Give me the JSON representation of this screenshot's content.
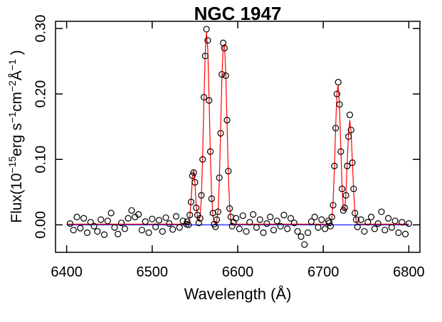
{
  "chart_data": {
    "type": "scatter",
    "title": "NGC 1947",
    "xlabel": "Wavelength (Å)",
    "ylabel": [
      "Flux(10",
      "−15",
      "erg s",
      "−1",
      "cm",
      "−2",
      "Å",
      "−1",
      " )"
    ],
    "xlim": [
      6387,
      6813
    ],
    "ylim": [
      -0.042,
      0.311
    ],
    "xticks": [
      6400,
      6500,
      6600,
      6700,
      6800
    ],
    "yticks": [
      {
        "value": 0,
        "label": "0.00"
      },
      {
        "value": 0.1,
        "label": "0.10"
      },
      {
        "value": 0.2,
        "label": "0.20"
      },
      {
        "value": 0.3,
        "label": "0.30"
      }
    ],
    "points": {
      "color": "#000000",
      "x": [
        6404,
        6408,
        6412,
        6416,
        6420,
        6424,
        6428,
        6432,
        6436,
        6440,
        6444,
        6448,
        6452,
        6456,
        6460,
        6464,
        6468,
        6472,
        6476,
        6480,
        6484,
        6488,
        6492,
        6496,
        6500,
        6504,
        6508,
        6512,
        6516,
        6520,
        6524,
        6528,
        6532,
        6536,
        6540,
        6541,
        6542.5,
        6544,
        6545.5,
        6547,
        6548.5,
        6550,
        6551.5,
        6553,
        6554.5,
        6556,
        6557.5,
        6559,
        6560.5,
        6562,
        6563.5,
        6565,
        6566.5,
        6568,
        6569.5,
        6571,
        6572.5,
        6574,
        6575.5,
        6577,
        6578.5,
        6580,
        6581.5,
        6583,
        6584.5,
        6586,
        6587.5,
        6589,
        6590.5,
        6592,
        6593.5,
        6595,
        6598,
        6602,
        6606,
        6610,
        6614,
        6618,
        6622,
        6626,
        6630,
        6634,
        6638,
        6642,
        6646,
        6650,
        6654,
        6658,
        6662,
        6666,
        6670,
        6674,
        6678,
        6682,
        6686,
        6690,
        6694,
        6698,
        6702,
        6706,
        6707,
        6708.5,
        6710,
        6711.5,
        6713,
        6714.5,
        6716,
        6717.5,
        6719,
        6720.5,
        6722,
        6723.5,
        6725,
        6726.5,
        6728,
        6729.5,
        6731,
        6732.5,
        6734,
        6735.5,
        6737,
        6738.5,
        6740,
        6744,
        6748,
        6752,
        6756,
        6760,
        6764,
        6768,
        6772,
        6776,
        6780,
        6784,
        6788,
        6792,
        6796,
        6800
      ],
      "values": [
        0.002,
        -0.008,
        0.012,
        -0.005,
        0.01,
        -0.012,
        0.004,
        -0.002,
        -0.01,
        0.008,
        -0.015,
        0.006,
        0.018,
        -0.004,
        -0.014,
        0.003,
        -0.006,
        0.01,
        0.022,
        0.012,
        0.016,
        -0.008,
        0.005,
        -0.012,
        0.009,
        -0.003,
        0.007,
        -0.01,
        0.011,
        0.002,
        -0.007,
        0.013,
        -0.004,
        0.006,
        0.001,
        0.005,
        0.0,
        0.015,
        0.035,
        0.075,
        0.08,
        0.065,
        0.026,
        0.015,
        0.003,
        0.01,
        0.045,
        0.1,
        0.195,
        0.258,
        0.299,
        0.282,
        0.19,
        0.112,
        0.04,
        0.018,
        0.001,
        -0.003,
        0.008,
        0.02,
        0.072,
        0.14,
        0.23,
        0.278,
        0.27,
        0.228,
        0.16,
        0.082,
        0.025,
        0.012,
        -0.002,
        0.004,
        0.01,
        -0.006,
        0.014,
        -0.01,
        0.004,
        0.016,
        -0.004,
        0.008,
        -0.012,
        0.002,
        0.012,
        -0.008,
        0.006,
        -0.002,
        0.015,
        -0.006,
        0.01,
        0.003,
        -0.01,
        -0.018,
        -0.03,
        -0.012,
        0.005,
        0.012,
        -0.004,
        0.008,
        -0.006,
        0.006,
        0.003,
        -0.002,
        0.012,
        0.03,
        0.09,
        0.148,
        0.2,
        0.218,
        0.184,
        0.112,
        0.055,
        0.022,
        0.026,
        0.045,
        0.09,
        0.135,
        0.168,
        0.145,
        0.095,
        0.055,
        0.018,
        0.008,
        -0.003,
        0.008,
        -0.01,
        0.004,
        0.012,
        -0.006,
        0.002,
        0.02,
        -0.008,
        0.01,
        -0.004,
        0.006,
        -0.012,
        0.004,
        -0.014,
        0.002
      ]
    },
    "baseline": {
      "color": "#0000ff",
      "x": [
        6400,
        6800
      ],
      "values": [
        0,
        0
      ]
    },
    "fit": {
      "color": "#ff0000",
      "x": [
        6400,
        6540,
        6541,
        6542.5,
        6544,
        6545.5,
        6547,
        6548.5,
        6550,
        6551.5,
        6553,
        6554.5,
        6556,
        6557.5,
        6559,
        6560.5,
        6562,
        6563.5,
        6565,
        6566.5,
        6568,
        6569.5,
        6571,
        6572.5,
        6574,
        6575.5,
        6577,
        6578.5,
        6580,
        6581.5,
        6583,
        6584.5,
        6586,
        6587.5,
        6589,
        6590.5,
        6592,
        6593.5,
        6595,
        6596,
        6706,
        6707,
        6708.5,
        6710,
        6711.5,
        6713,
        6714.5,
        6716,
        6717.5,
        6719,
        6720.5,
        6722,
        6723.5,
        6725,
        6726.5,
        6728,
        6729.5,
        6731,
        6732.5,
        6734,
        6735.5,
        6737,
        6738.5,
        6740,
        6741,
        6800
      ],
      "values": [
        0.001,
        0.001,
        0.002,
        0.004,
        0.012,
        0.038,
        0.072,
        0.084,
        0.062,
        0.03,
        0.012,
        0.006,
        0.012,
        0.042,
        0.105,
        0.19,
        0.262,
        0.294,
        0.268,
        0.195,
        0.108,
        0.045,
        0.014,
        0.004,
        0.002,
        0.006,
        0.022,
        0.068,
        0.145,
        0.225,
        0.272,
        0.276,
        0.232,
        0.155,
        0.078,
        0.028,
        0.008,
        0.002,
        0.0,
        0.001,
        0.001,
        0.0,
        0.002,
        0.01,
        0.035,
        0.085,
        0.15,
        0.203,
        0.213,
        0.18,
        0.118,
        0.058,
        0.025,
        0.022,
        0.048,
        0.095,
        0.14,
        0.16,
        0.142,
        0.098,
        0.052,
        0.02,
        0.006,
        0.001,
        0.001,
        0.001
      ]
    }
  }
}
